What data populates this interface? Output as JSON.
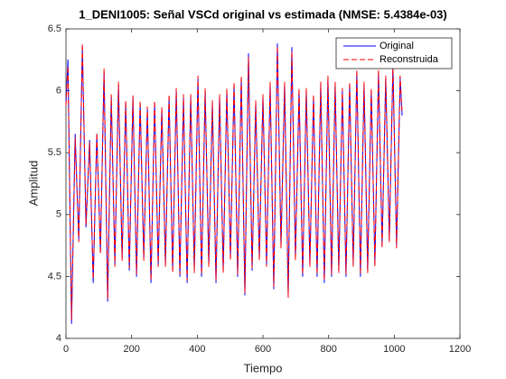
{
  "chart_data": {
    "type": "line",
    "title": "1_DENI1005: Señal VSCd original vs estimada (NMSE: 5.4384e-03)",
    "xlabel": "Tiempo",
    "ylabel": "Amplitud",
    "x": [
      0,
      6,
      17,
      28,
      39,
      50,
      61,
      72,
      83,
      94,
      105,
      116,
      127,
      138,
      149,
      160,
      171,
      182,
      193,
      204,
      215,
      226,
      237,
      248,
      259,
      270,
      281,
      292,
      303,
      314,
      325,
      336,
      347,
      358,
      369,
      380,
      391,
      402,
      413,
      424,
      435,
      446,
      457,
      468,
      479,
      490,
      501,
      512,
      523,
      534,
      545,
      556,
      567,
      578,
      589,
      600,
      611,
      622,
      633,
      644,
      655,
      666,
      677,
      688,
      699,
      710,
      721,
      732,
      743,
      754,
      765,
      776,
      787,
      798,
      809,
      820,
      831,
      842,
      853,
      864,
      875,
      886,
      897,
      908,
      919,
      930,
      941,
      952,
      963,
      974,
      985,
      996,
      1007,
      1018,
      1024
    ],
    "series": [
      {
        "name": "Original",
        "color": "#0000ff",
        "dash": false,
        "values": [
          5.9,
          6.25,
          4.12,
          5.65,
          4.8,
          6.35,
          4.9,
          5.6,
          4.45,
          5.65,
          4.7,
          6.15,
          4.3,
          5.95,
          4.6,
          6.05,
          4.65,
          5.9,
          4.55,
          5.95,
          4.5,
          5.9,
          4.65,
          5.85,
          4.45,
          5.9,
          4.6,
          5.85,
          4.6,
          5.95,
          4.55,
          6.0,
          4.5,
          5.95,
          4.45,
          5.95,
          4.55,
          6.1,
          4.5,
          6.0,
          4.6,
          5.9,
          4.45,
          5.95,
          4.55,
          6.0,
          4.65,
          6.05,
          4.5,
          6.1,
          4.35,
          6.3,
          4.55,
          5.9,
          4.65,
          5.95,
          4.6,
          6.05,
          4.4,
          6.38,
          4.75,
          6.05,
          4.35,
          6.35,
          4.65,
          6.0,
          4.5,
          6.0,
          4.6,
          5.95,
          4.5,
          6.05,
          4.45,
          6.1,
          4.5,
          6.05,
          4.55,
          6.0,
          4.5,
          6.05,
          4.6,
          6.15,
          4.5,
          6.05,
          4.55,
          6.0,
          4.6,
          6.15,
          4.75,
          6.1,
          4.8,
          6.2,
          4.75,
          6.1,
          5.8
        ]
      },
      {
        "name": "Reconstruida",
        "color": "#ff0000",
        "dash": true,
        "values": [
          5.88,
          6.2,
          4.15,
          5.62,
          4.78,
          6.38,
          4.92,
          5.58,
          4.48,
          5.66,
          4.68,
          6.18,
          4.32,
          5.97,
          4.58,
          6.07,
          4.63,
          5.92,
          4.57,
          5.96,
          4.52,
          5.92,
          4.63,
          5.87,
          4.47,
          5.92,
          4.58,
          5.87,
          4.58,
          5.97,
          4.53,
          6.02,
          4.52,
          5.97,
          4.47,
          5.97,
          4.53,
          6.12,
          4.52,
          6.02,
          4.58,
          5.92,
          4.47,
          5.97,
          4.53,
          6.02,
          4.63,
          6.07,
          4.52,
          6.12,
          4.37,
          6.27,
          4.57,
          5.92,
          4.63,
          5.97,
          4.58,
          6.07,
          4.42,
          6.36,
          4.73,
          6.07,
          4.33,
          6.32,
          4.63,
          6.02,
          4.52,
          6.02,
          4.58,
          5.97,
          4.52,
          6.07,
          4.47,
          6.12,
          4.52,
          6.07,
          4.53,
          6.02,
          4.52,
          6.07,
          4.58,
          6.17,
          4.52,
          6.07,
          4.53,
          6.02,
          4.58,
          6.17,
          4.73,
          6.12,
          4.78,
          6.22,
          4.73,
          6.12,
          5.82
        ]
      }
    ],
    "xlim": [
      0,
      1200
    ],
    "xticks": [
      0,
      200,
      400,
      600,
      800,
      1000,
      1200
    ],
    "ylim": [
      4,
      6.5
    ],
    "yticks": [
      4,
      4.5,
      5,
      5.5,
      6,
      6.5
    ],
    "legend": "northeast",
    "grid": false
  }
}
